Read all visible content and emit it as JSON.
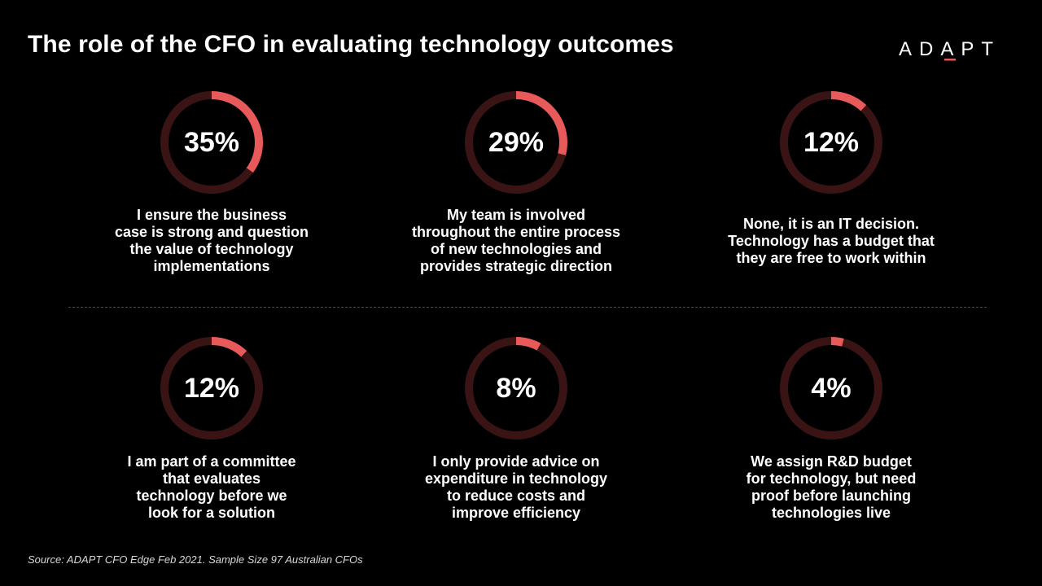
{
  "header": {
    "title": "The role of the CFO in evaluating technology outcomes",
    "logo_text": "ADAPT"
  },
  "colors": {
    "background": "#000000",
    "accent": "#e85a5a",
    "ring_track": "#3a1414",
    "text": "#ffffff"
  },
  "chart_data": {
    "type": "donut",
    "unit": "%",
    "items": [
      {
        "value": 35,
        "label": "35%",
        "caption": "I ensure the business\ncase is strong and question\nthe value of technology\nimplementations"
      },
      {
        "value": 29,
        "label": "29%",
        "caption": "My team is involved\nthroughout the entire process\nof new technologies and\nprovides strategic direction"
      },
      {
        "value": 12,
        "label": "12%",
        "caption": "None, it is an IT decision.\nTechnology has a budget that\nthey are free to work within"
      },
      {
        "value": 12,
        "label": "12%",
        "caption": "I am part of a committee\nthat evaluates\ntechnology before we\nlook for a solution"
      },
      {
        "value": 8,
        "label": "8%",
        "caption": "I only provide advice on\nexpenditure in technology\nto reduce costs and\nimprove efficiency"
      },
      {
        "value": 4,
        "label": "4%",
        "caption": "We assign R&D budget\nfor technology, but need\nproof before launching\ntechnologies live"
      }
    ]
  },
  "footer": {
    "source": "Source: ADAPT  CFO Edge Feb 2021. Sample Size 97 Australian CFOs"
  }
}
